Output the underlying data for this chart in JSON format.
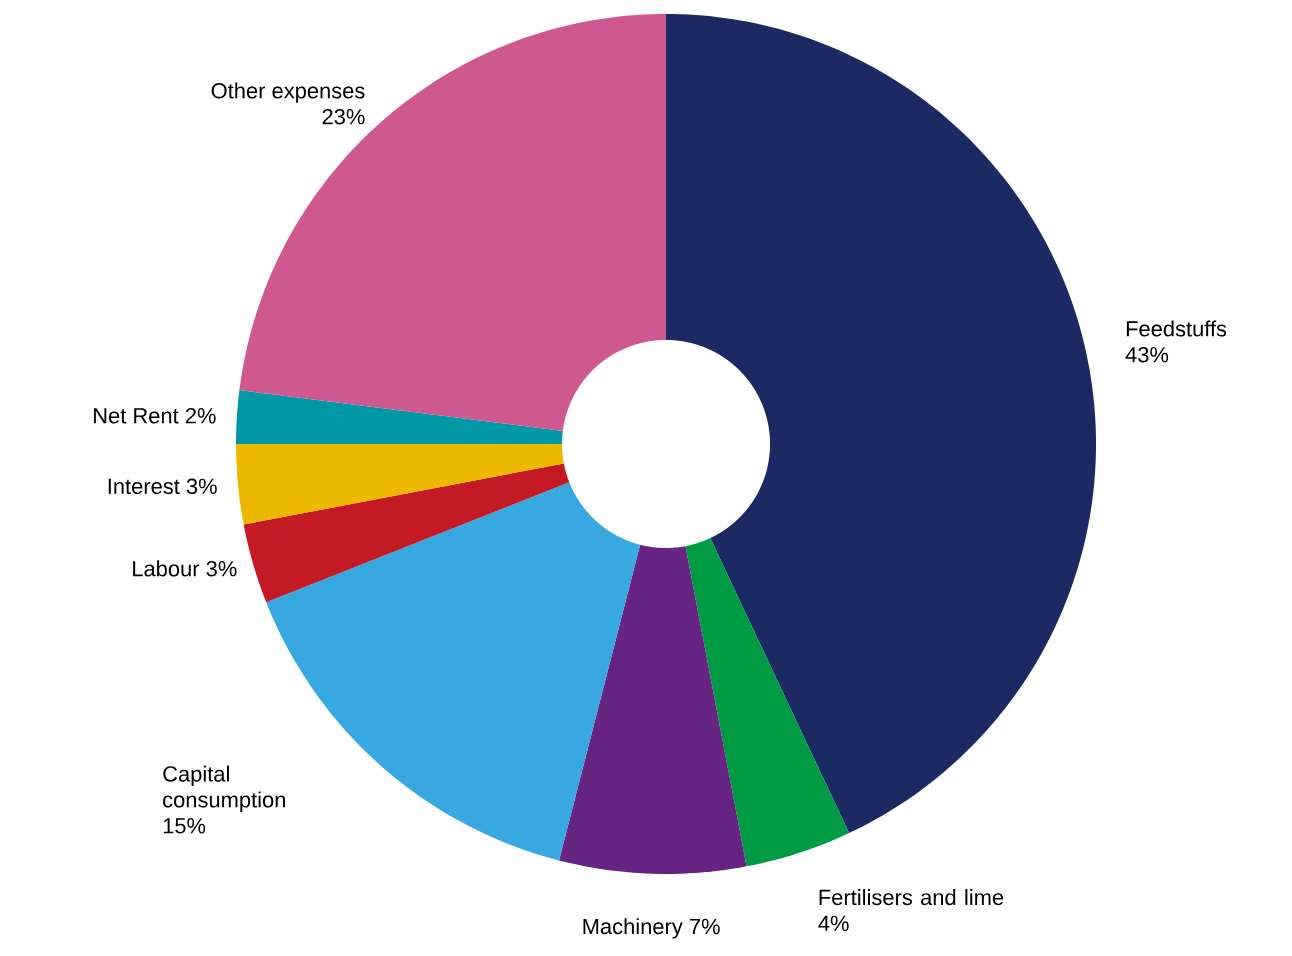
{
  "chart_data": {
    "type": "donut",
    "categories": [
      "Feedstuffs",
      "Fertilisers and lime",
      "Machinery",
      "Capital consumption",
      "Labour",
      "Interest",
      "Net Rent",
      "Other expenses"
    ],
    "values": [
      43,
      4,
      7,
      15,
      3,
      3,
      2,
      23
    ],
    "value_labels": [
      "43%",
      "4%",
      "7%",
      "15%",
      "3%",
      "3%",
      "2%",
      "23%"
    ],
    "colors": [
      "#1b2a63",
      "#009a44",
      "#662483",
      "#38a8e0",
      "#c41a25",
      "#ecb800",
      "#0097a7",
      "#d05890"
    ]
  }
}
